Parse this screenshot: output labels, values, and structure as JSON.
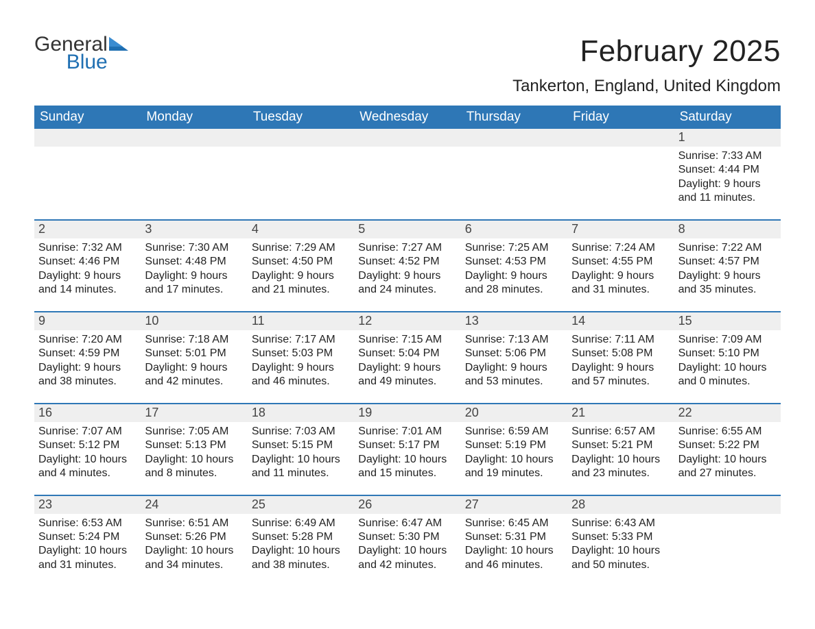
{
  "brand": {
    "word1": "General",
    "word2": "Blue",
    "accent_color": "#1f6fb2",
    "text_color": "#333333"
  },
  "title": "February 2025",
  "location": "Tankerton, England, United Kingdom",
  "colors": {
    "header_bg": "#2e77b6",
    "header_text": "#ffffff",
    "daynum_bg": "#efefef",
    "week_border": "#2e77b6",
    "body_text": "#222222",
    "page_bg": "#ffffff"
  },
  "weekdays": [
    "Sunday",
    "Monday",
    "Tuesday",
    "Wednesday",
    "Thursday",
    "Friday",
    "Saturday"
  ],
  "weeks": [
    [
      {
        "day": "",
        "lines": []
      },
      {
        "day": "",
        "lines": []
      },
      {
        "day": "",
        "lines": []
      },
      {
        "day": "",
        "lines": []
      },
      {
        "day": "",
        "lines": []
      },
      {
        "day": "",
        "lines": []
      },
      {
        "day": "1",
        "lines": [
          "Sunrise: 7:33 AM",
          "Sunset: 4:44 PM",
          "Daylight: 9 hours",
          "and 11 minutes."
        ]
      }
    ],
    [
      {
        "day": "2",
        "lines": [
          "Sunrise: 7:32 AM",
          "Sunset: 4:46 PM",
          "Daylight: 9 hours",
          "and 14 minutes."
        ]
      },
      {
        "day": "3",
        "lines": [
          "Sunrise: 7:30 AM",
          "Sunset: 4:48 PM",
          "Daylight: 9 hours",
          "and 17 minutes."
        ]
      },
      {
        "day": "4",
        "lines": [
          "Sunrise: 7:29 AM",
          "Sunset: 4:50 PM",
          "Daylight: 9 hours",
          "and 21 minutes."
        ]
      },
      {
        "day": "5",
        "lines": [
          "Sunrise: 7:27 AM",
          "Sunset: 4:52 PM",
          "Daylight: 9 hours",
          "and 24 minutes."
        ]
      },
      {
        "day": "6",
        "lines": [
          "Sunrise: 7:25 AM",
          "Sunset: 4:53 PM",
          "Daylight: 9 hours",
          "and 28 minutes."
        ]
      },
      {
        "day": "7",
        "lines": [
          "Sunrise: 7:24 AM",
          "Sunset: 4:55 PM",
          "Daylight: 9 hours",
          "and 31 minutes."
        ]
      },
      {
        "day": "8",
        "lines": [
          "Sunrise: 7:22 AM",
          "Sunset: 4:57 PM",
          "Daylight: 9 hours",
          "and 35 minutes."
        ]
      }
    ],
    [
      {
        "day": "9",
        "lines": [
          "Sunrise: 7:20 AM",
          "Sunset: 4:59 PM",
          "Daylight: 9 hours",
          "and 38 minutes."
        ]
      },
      {
        "day": "10",
        "lines": [
          "Sunrise: 7:18 AM",
          "Sunset: 5:01 PM",
          "Daylight: 9 hours",
          "and 42 minutes."
        ]
      },
      {
        "day": "11",
        "lines": [
          "Sunrise: 7:17 AM",
          "Sunset: 5:03 PM",
          "Daylight: 9 hours",
          "and 46 minutes."
        ]
      },
      {
        "day": "12",
        "lines": [
          "Sunrise: 7:15 AM",
          "Sunset: 5:04 PM",
          "Daylight: 9 hours",
          "and 49 minutes."
        ]
      },
      {
        "day": "13",
        "lines": [
          "Sunrise: 7:13 AM",
          "Sunset: 5:06 PM",
          "Daylight: 9 hours",
          "and 53 minutes."
        ]
      },
      {
        "day": "14",
        "lines": [
          "Sunrise: 7:11 AM",
          "Sunset: 5:08 PM",
          "Daylight: 9 hours",
          "and 57 minutes."
        ]
      },
      {
        "day": "15",
        "lines": [
          "Sunrise: 7:09 AM",
          "Sunset: 5:10 PM",
          "Daylight: 10 hours",
          "and 0 minutes."
        ]
      }
    ],
    [
      {
        "day": "16",
        "lines": [
          "Sunrise: 7:07 AM",
          "Sunset: 5:12 PM",
          "Daylight: 10 hours",
          "and 4 minutes."
        ]
      },
      {
        "day": "17",
        "lines": [
          "Sunrise: 7:05 AM",
          "Sunset: 5:13 PM",
          "Daylight: 10 hours",
          "and 8 minutes."
        ]
      },
      {
        "day": "18",
        "lines": [
          "Sunrise: 7:03 AM",
          "Sunset: 5:15 PM",
          "Daylight: 10 hours",
          "and 11 minutes."
        ]
      },
      {
        "day": "19",
        "lines": [
          "Sunrise: 7:01 AM",
          "Sunset: 5:17 PM",
          "Daylight: 10 hours",
          "and 15 minutes."
        ]
      },
      {
        "day": "20",
        "lines": [
          "Sunrise: 6:59 AM",
          "Sunset: 5:19 PM",
          "Daylight: 10 hours",
          "and 19 minutes."
        ]
      },
      {
        "day": "21",
        "lines": [
          "Sunrise: 6:57 AM",
          "Sunset: 5:21 PM",
          "Daylight: 10 hours",
          "and 23 minutes."
        ]
      },
      {
        "day": "22",
        "lines": [
          "Sunrise: 6:55 AM",
          "Sunset: 5:22 PM",
          "Daylight: 10 hours",
          "and 27 minutes."
        ]
      }
    ],
    [
      {
        "day": "23",
        "lines": [
          "Sunrise: 6:53 AM",
          "Sunset: 5:24 PM",
          "Daylight: 10 hours",
          "and 31 minutes."
        ]
      },
      {
        "day": "24",
        "lines": [
          "Sunrise: 6:51 AM",
          "Sunset: 5:26 PM",
          "Daylight: 10 hours",
          "and 34 minutes."
        ]
      },
      {
        "day": "25",
        "lines": [
          "Sunrise: 6:49 AM",
          "Sunset: 5:28 PM",
          "Daylight: 10 hours",
          "and 38 minutes."
        ]
      },
      {
        "day": "26",
        "lines": [
          "Sunrise: 6:47 AM",
          "Sunset: 5:30 PM",
          "Daylight: 10 hours",
          "and 42 minutes."
        ]
      },
      {
        "day": "27",
        "lines": [
          "Sunrise: 6:45 AM",
          "Sunset: 5:31 PM",
          "Daylight: 10 hours",
          "and 46 minutes."
        ]
      },
      {
        "day": "28",
        "lines": [
          "Sunrise: 6:43 AM",
          "Sunset: 5:33 PM",
          "Daylight: 10 hours",
          "and 50 minutes."
        ]
      },
      {
        "day": "",
        "lines": []
      }
    ]
  ]
}
